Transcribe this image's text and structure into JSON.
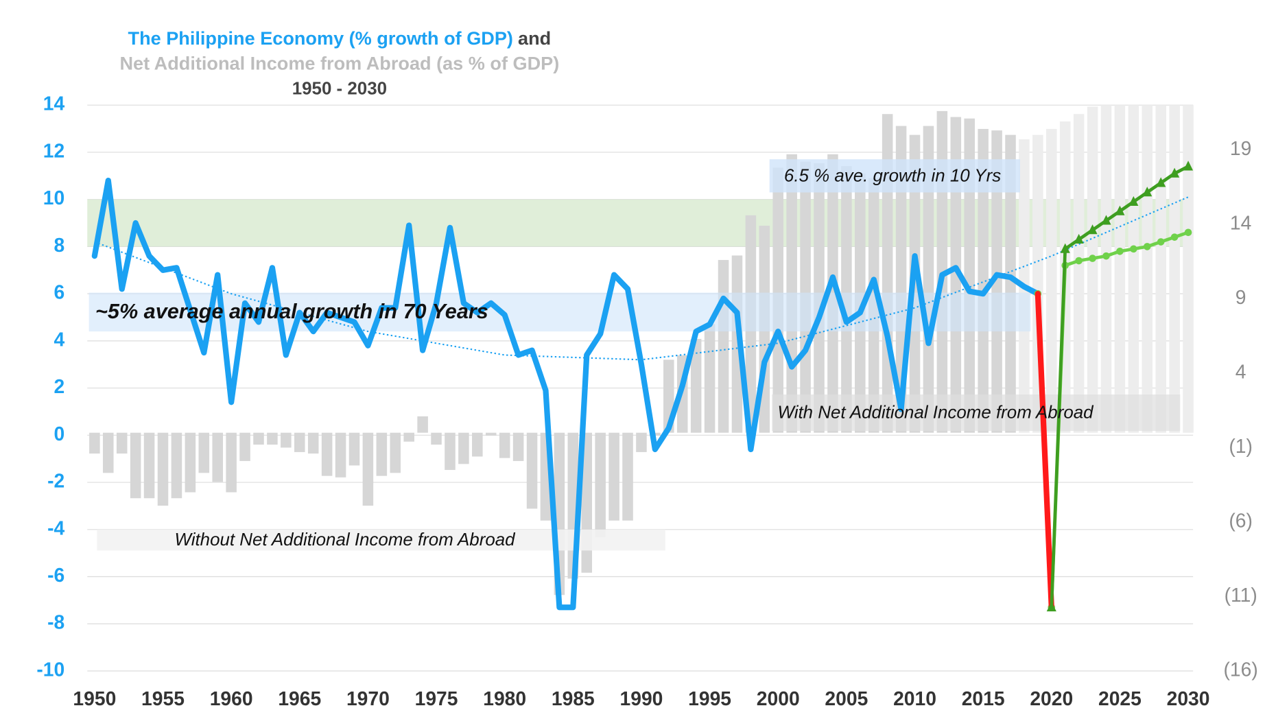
{
  "chart_data": {
    "type": "bar_line",
    "title": "The Philippine Economy (% growth of GDP)",
    "title_suffix": "and",
    "subtitle": "Net Additional Income from Abroad (as % of GDP)",
    "period": "1950 - 2030",
    "x": [
      1950,
      1951,
      1952,
      1953,
      1954,
      1955,
      1956,
      1957,
      1958,
      1959,
      1960,
      1961,
      1962,
      1963,
      1964,
      1965,
      1966,
      1967,
      1968,
      1969,
      1970,
      1971,
      1972,
      1973,
      1974,
      1975,
      1976,
      1977,
      1978,
      1979,
      1980,
      1981,
      1982,
      1983,
      1984,
      1985,
      1986,
      1987,
      1988,
      1989,
      1990,
      1991,
      1992,
      1993,
      1994,
      1995,
      1996,
      1997,
      1998,
      1999,
      2000,
      2001,
      2002,
      2003,
      2004,
      2005,
      2006,
      2007,
      2008,
      2009,
      2010,
      2011,
      2012,
      2013,
      2014,
      2015,
      2016,
      2017,
      2018,
      2019,
      2020,
      2021,
      2022,
      2023,
      2024,
      2025,
      2026,
      2027,
      2028,
      2029,
      2030
    ],
    "xlim": [
      1950,
      2030
    ],
    "xticks": [
      1950,
      1955,
      1960,
      1965,
      1970,
      1975,
      1980,
      1985,
      1990,
      1995,
      2000,
      2005,
      2010,
      2015,
      2020,
      2025,
      2030
    ],
    "ylim": [
      -10,
      14
    ],
    "yticks": [
      -10,
      -8,
      -6,
      -4,
      -2,
      0,
      2,
      4,
      6,
      8,
      10,
      12,
      14
    ],
    "y2lim": [
      -16,
      22
    ],
    "y2ticks": [
      {
        "value": -16,
        "label": "(16)"
      },
      {
        "value": -11,
        "label": "(11)"
      },
      {
        "value": -6,
        "label": "(6)"
      },
      {
        "value": -1,
        "label": "(1)"
      },
      4,
      9,
      14,
      19
    ],
    "grid": true,
    "target_band": [
      8,
      10
    ],
    "series": [
      {
        "kind": "bar",
        "axis": "y2",
        "color": "#d6d6d6",
        "values": [
          -1.4,
          -2.7,
          -1.4,
          -4.4,
          -4.4,
          -4.9,
          -4.4,
          -4.0,
          -2.7,
          -3.3,
          -4.0,
          -1.9,
          -0.8,
          -0.8,
          -1.0,
          -1.3,
          -1.4,
          -2.9,
          -3.0,
          -2.2,
          -4.9,
          -2.9,
          -2.7,
          -0.6,
          1.1,
          -0.8,
          -2.5,
          -2.1,
          -1.6,
          -0.2,
          -1.7,
          -1.9,
          -5.1,
          -5.9,
          -10.9,
          -9.8,
          -9.4,
          -7.0,
          -5.9,
          -5.9,
          -1.3,
          -0.2,
          4.9,
          5.2,
          6.3,
          7.3,
          11.6,
          11.9,
          14.6,
          13.9,
          17.8,
          18.7,
          18.2,
          18.1,
          18.7,
          17.9,
          17.4,
          17.1,
          21.4,
          20.6,
          20.0,
          20.6,
          21.6,
          21.2,
          21.1,
          20.4,
          20.3,
          20.0,
          null,
          null,
          null,
          null,
          null,
          null,
          null,
          null,
          null,
          null,
          null,
          null,
          null
        ]
      },
      {
        "kind": "bar",
        "axis": "y2",
        "color": "#ededed",
        "values": [
          null,
          null,
          null,
          null,
          null,
          null,
          null,
          null,
          null,
          null,
          null,
          null,
          null,
          null,
          null,
          null,
          null,
          null,
          null,
          null,
          null,
          null,
          null,
          null,
          null,
          null,
          null,
          null,
          null,
          null,
          null,
          null,
          null,
          null,
          null,
          null,
          null,
          null,
          null,
          null,
          null,
          null,
          null,
          null,
          null,
          null,
          null,
          null,
          null,
          null,
          null,
          null,
          null,
          null,
          null,
          null,
          null,
          null,
          null,
          null,
          null,
          null,
          null,
          null,
          null,
          null,
          null,
          null,
          19.7,
          20.0,
          20.4,
          20.9,
          21.4,
          21.9,
          22,
          22,
          22,
          22,
          22,
          22,
          22
        ]
      },
      {
        "kind": "line",
        "color": "#1ba1f2",
        "width": 7,
        "values": [
          7.6,
          10.8,
          6.2,
          9.0,
          7.6,
          7.0,
          7.1,
          5.3,
          3.5,
          6.8,
          1.4,
          5.6,
          4.8,
          7.1,
          3.4,
          5.2,
          4.4,
          5.2,
          5.0,
          4.8,
          3.8,
          5.4,
          5.4,
          8.9,
          3.6,
          5.6,
          8.8,
          5.6,
          5.2,
          5.6,
          5.1,
          3.4,
          3.6,
          1.9,
          -7.3,
          -7.3,
          3.4,
          4.3,
          6.8,
          6.2,
          3.0,
          -0.6,
          0.3,
          2.1,
          4.4,
          4.7,
          5.8,
          5.2,
          -0.6,
          3.1,
          4.4,
          2.9,
          3.6,
          5.0,
          6.7,
          4.8,
          5.2,
          6.6,
          4.2,
          1.1,
          7.6,
          3.9,
          6.8,
          7.1,
          6.1,
          6.0,
          6.8,
          6.7,
          6.3,
          6.0,
          null,
          null,
          null,
          null,
          null,
          null,
          null,
          null,
          null,
          null,
          null
        ]
      },
      {
        "kind": "line",
        "color": "#6fd14a",
        "width": 4,
        "marker": "circle",
        "values": [
          null,
          null,
          null,
          null,
          null,
          null,
          null,
          null,
          null,
          null,
          null,
          null,
          null,
          null,
          null,
          null,
          null,
          null,
          null,
          null,
          null,
          null,
          null,
          null,
          null,
          null,
          null,
          null,
          null,
          null,
          null,
          null,
          null,
          null,
          null,
          null,
          null,
          null,
          null,
          null,
          null,
          null,
          null,
          null,
          null,
          null,
          null,
          null,
          null,
          null,
          null,
          null,
          null,
          null,
          null,
          null,
          null,
          null,
          null,
          null,
          null,
          null,
          null,
          null,
          null,
          null,
          null,
          null,
          null,
          6.0,
          -7.3,
          7.2,
          7.4,
          7.5,
          7.6,
          7.8,
          7.9,
          8.0,
          8.2,
          8.4,
          8.6
        ]
      },
      {
        "kind": "line",
        "color": "#ff1a1a",
        "width": 7,
        "values": [
          null,
          null,
          null,
          null,
          null,
          null,
          null,
          null,
          null,
          null,
          null,
          null,
          null,
          null,
          null,
          null,
          null,
          null,
          null,
          null,
          null,
          null,
          null,
          null,
          null,
          null,
          null,
          null,
          null,
          null,
          null,
          null,
          null,
          null,
          null,
          null,
          null,
          null,
          null,
          null,
          null,
          null,
          null,
          null,
          null,
          null,
          null,
          null,
          null,
          null,
          null,
          null,
          null,
          null,
          null,
          null,
          null,
          null,
          null,
          null,
          null,
          null,
          null,
          null,
          null,
          null,
          null,
          null,
          null,
          6.0,
          -7.3,
          null,
          null,
          null,
          null,
          null,
          null,
          null,
          null,
          null,
          null
        ]
      },
      {
        "kind": "line",
        "color": "#3e9e20",
        "width": 4,
        "marker": "triangle",
        "values": [
          null,
          null,
          null,
          null,
          null,
          null,
          null,
          null,
          null,
          null,
          null,
          null,
          null,
          null,
          null,
          null,
          null,
          null,
          null,
          null,
          null,
          null,
          null,
          null,
          null,
          null,
          null,
          null,
          null,
          null,
          null,
          null,
          null,
          null,
          null,
          null,
          null,
          null,
          null,
          null,
          null,
          null,
          null,
          null,
          null,
          null,
          null,
          null,
          null,
          null,
          null,
          null,
          null,
          null,
          null,
          null,
          null,
          null,
          null,
          null,
          null,
          null,
          null,
          null,
          null,
          null,
          null,
          null,
          null,
          null,
          -7.3,
          7.9,
          8.3,
          8.7,
          9.1,
          9.5,
          9.9,
          10.3,
          10.7,
          11.1,
          11.4
        ]
      }
    ],
    "trend": {
      "color": "#1ba1f2",
      "x": [
        1950,
        1960,
        1970,
        1980,
        1990,
        2000,
        2010,
        2020,
        2030
      ],
      "values": [
        8.2,
        6.0,
        4.4,
        3.4,
        3.2,
        3.9,
        5.4,
        7.6,
        10.1
      ]
    },
    "annotations": [
      {
        "text": "~5% average annual growth in 70 Years"
      },
      {
        "text": "6.5 % ave. growth in 10 Yrs"
      },
      {
        "text": "Without  Net Additional Income from Abroad"
      },
      {
        "text": "With Net Additional Income from Abroad"
      }
    ]
  }
}
